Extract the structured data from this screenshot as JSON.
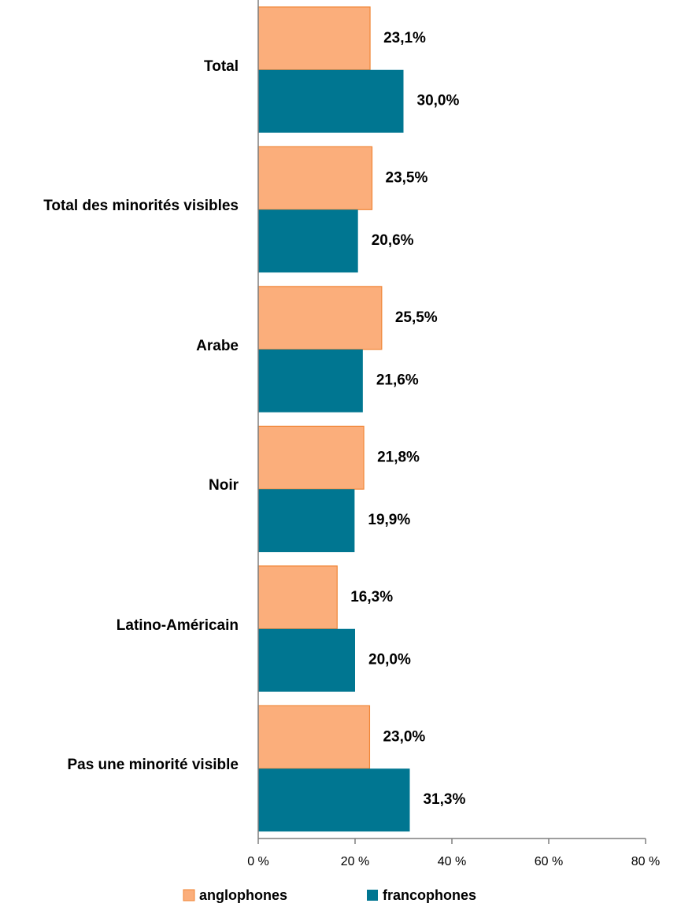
{
  "chart_data": {
    "type": "hbar",
    "categories": [
      "Total",
      "Total des minorités visibles",
      "Arabe",
      "Noir",
      "Latino-Américain",
      "Pas une minorité visible"
    ],
    "series": [
      {
        "name": "anglophones",
        "color": "#fbae7b",
        "values": [
          23.1,
          23.5,
          25.5,
          21.8,
          16.3,
          23.0
        ],
        "value_labels": [
          "23,1%",
          "23,5%",
          "25,5%",
          "21,8%",
          "16,3%",
          "23,0%"
        ]
      },
      {
        "name": "francophones",
        "color": "#007691",
        "values": [
          30.0,
          20.6,
          21.6,
          19.9,
          20.0,
          31.3
        ],
        "value_labels": [
          "30,0%",
          "20,6%",
          "21,6%",
          "19,9%",
          "20,0%",
          "31,3%"
        ]
      }
    ],
    "xlim": [
      0,
      80
    ],
    "xticks": [
      {
        "value": 0,
        "label": "0 %"
      },
      {
        "value": 20,
        "label": "20 %"
      },
      {
        "value": 40,
        "label": "40 %"
      },
      {
        "value": 60,
        "label": "60 %"
      },
      {
        "value": 80,
        "label": "80 %"
      }
    ],
    "grid": false,
    "legend": "bottom"
  }
}
